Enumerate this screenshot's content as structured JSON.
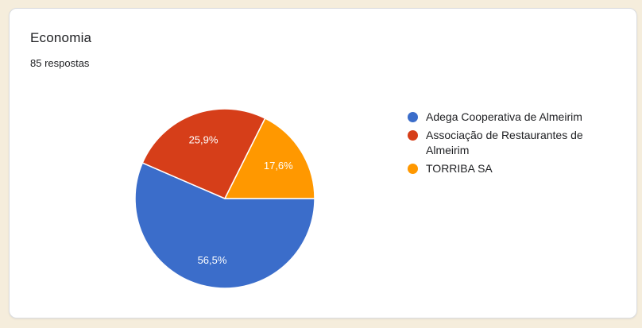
{
  "page": {
    "background_color": "#f5eddc"
  },
  "card": {
    "background_color": "#ffffff",
    "border_color": "#dadce0",
    "title": "Economia",
    "response_count": "85 respostas"
  },
  "chart_data": {
    "type": "pie",
    "title": "Economia",
    "subtitle": "85 respostas",
    "start_angle_deg": 0,
    "direction": "clockwise",
    "legend_position": "right",
    "slice_border_color": "#ffffff",
    "label_text_color": "#ffffff",
    "slices": [
      {
        "label": "Adega Cooperativa de Almeirim",
        "pct": 56.5,
        "pct_label": "56,5%",
        "color": "#3b6dca"
      },
      {
        "label": "Associação de Restaurantes de Almeirim",
        "pct": 25.9,
        "pct_label": "25,9%",
        "color": "#d63e19"
      },
      {
        "label": "TORRIBA SA",
        "pct": 17.6,
        "pct_label": "17,6%",
        "color": "#ff9800"
      }
    ]
  }
}
